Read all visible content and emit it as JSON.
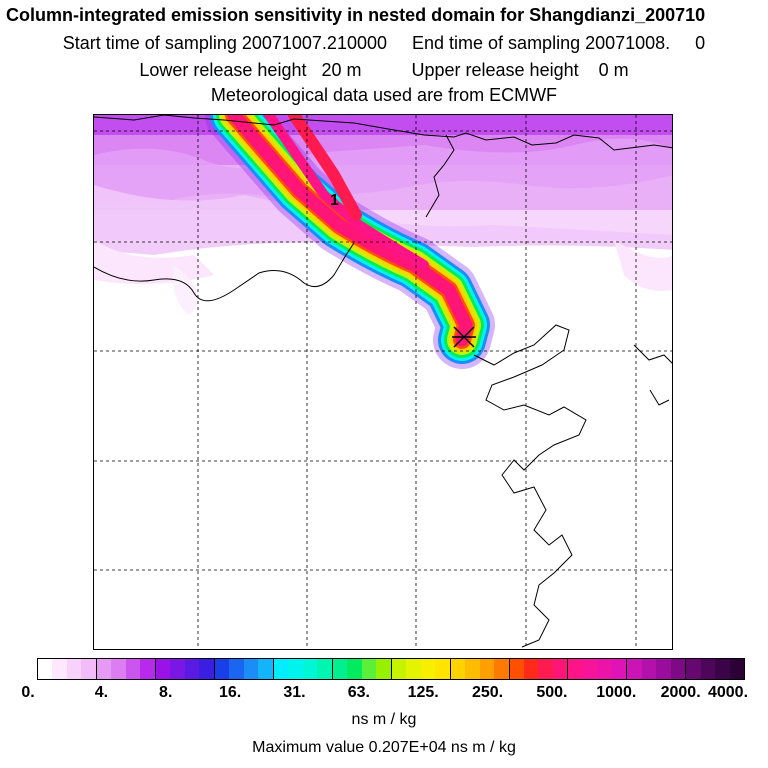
{
  "header": {
    "title": "Column-integrated emission sensitivity in nested domain for Shangdianzi_200710",
    "line2": "Start time of sampling 20071007.210000     End time of sampling 20071008.     0",
    "line3": "Lower release height   20 m          Upper release height    0 m",
    "line4": "Meteorological data used are from ECMWF"
  },
  "map": {
    "marker_label": "1",
    "receptor_marker": "x-cross"
  },
  "colorbar": {
    "tick_labels": [
      "0.",
      "4.",
      "8.",
      "16.",
      "31.",
      "63.",
      "125.",
      "250.",
      "500.",
      "1000.",
      "2000.",
      "4000."
    ],
    "colors": [
      "#ffffff",
      "#fde8ff",
      "#f8d2fb",
      "#f2bcf8",
      "#e69af4",
      "#dc7ef2",
      "#cc55ef",
      "#b82aeb",
      "#9a12e8",
      "#7a16e6",
      "#5a1ae4",
      "#3a1ee2",
      "#1a3ee8",
      "#1a66f0",
      "#1a8ef6",
      "#14b4fa",
      "#00ecff",
      "#00f4ee",
      "#00f6d4",
      "#00f6b0",
      "#00f090",
      "#00ec5e",
      "#5af03a",
      "#96f000",
      "#c6f400",
      "#e4f400",
      "#f6f000",
      "#ffe400",
      "#ffd200",
      "#ffbc00",
      "#ffa000",
      "#ff7a00",
      "#ff5000",
      "#ff2a1a",
      "#ff1a50",
      "#ff1478",
      "#ff1488",
      "#f8149a",
      "#ec14a8",
      "#e014b6",
      "#cc14b6",
      "#b410ac",
      "#9a0c9c",
      "#7e0a86",
      "#660870",
      "#4e065a",
      "#3c0448",
      "#2c0236"
    ],
    "units": "ns m / kg",
    "max_text": "Maximum value  0.207E+04 ns m / kg"
  }
}
